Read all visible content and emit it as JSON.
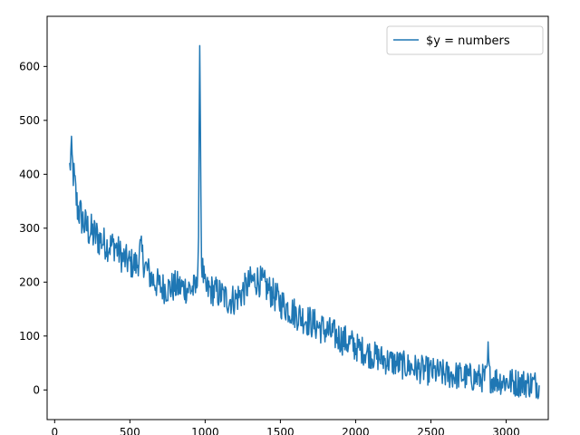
{
  "chart_data": {
    "type": "line",
    "title": "",
    "xlabel": "",
    "ylabel": "",
    "xlim": [
      -50,
      3280
    ],
    "ylim": [
      -55,
      693
    ],
    "x_ticks": [
      0,
      500,
      1000,
      1500,
      2000,
      2500,
      3000
    ],
    "y_ticks": [
      0,
      100,
      200,
      300,
      400,
      500,
      600
    ],
    "grid": false,
    "legend_position": "top-right",
    "series": [
      {
        "name": "$y = numbers",
        "color": "#1f77b4",
        "x_range": [
          100,
          3220
        ],
        "x_step": 4,
        "trend_points": [
          [
            100,
            410
          ],
          [
            110,
            440
          ],
          [
            125,
            400
          ],
          [
            150,
            340
          ],
          [
            200,
            305
          ],
          [
            250,
            290
          ],
          [
            300,
            280
          ],
          [
            350,
            268
          ],
          [
            400,
            268
          ],
          [
            450,
            245
          ],
          [
            500,
            235
          ],
          [
            550,
            232
          ],
          [
            570,
            262
          ],
          [
            600,
            230
          ],
          [
            650,
            205
          ],
          [
            700,
            192
          ],
          [
            750,
            188
          ],
          [
            800,
            192
          ],
          [
            850,
            190
          ],
          [
            900,
            188
          ],
          [
            940,
            186
          ],
          [
            955,
            250
          ],
          [
            965,
            650
          ],
          [
            975,
            240
          ],
          [
            1000,
            185
          ],
          [
            1050,
            185
          ],
          [
            1100,
            178
          ],
          [
            1150,
            168
          ],
          [
            1200,
            168
          ],
          [
            1250,
            182
          ],
          [
            1300,
            200
          ],
          [
            1350,
            205
          ],
          [
            1400,
            192
          ],
          [
            1450,
            178
          ],
          [
            1500,
            162
          ],
          [
            1600,
            142
          ],
          [
            1700,
            126
          ],
          [
            1800,
            110
          ],
          [
            1900,
            96
          ],
          [
            2000,
            80
          ],
          [
            2100,
            66
          ],
          [
            2200,
            55
          ],
          [
            2300,
            47
          ],
          [
            2400,
            40
          ],
          [
            2500,
            34
          ],
          [
            2600,
            29
          ],
          [
            2700,
            26
          ],
          [
            2800,
            22
          ],
          [
            2870,
            22
          ],
          [
            2880,
            68
          ],
          [
            2890,
            22
          ],
          [
            2950,
            18
          ],
          [
            3050,
            14
          ],
          [
            3150,
            12
          ],
          [
            3220,
            10
          ]
        ],
        "noise_amplitude": 30
      }
    ]
  }
}
